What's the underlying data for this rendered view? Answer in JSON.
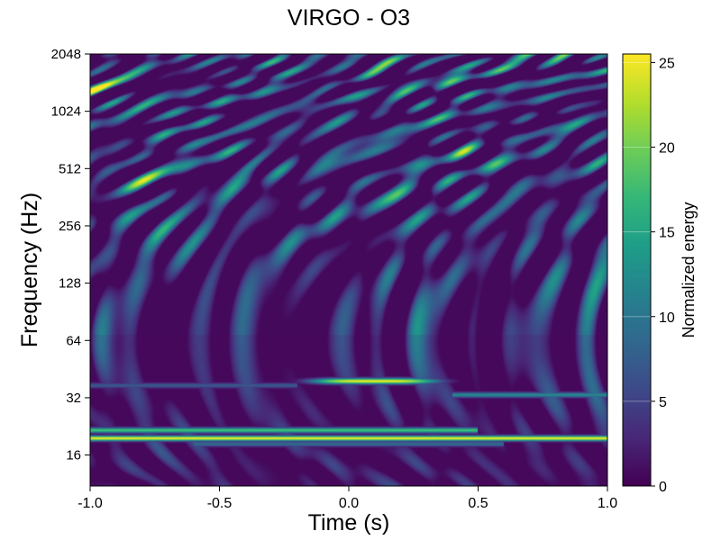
{
  "chart_data": {
    "type": "heatmap",
    "title": "VIRGO - O3",
    "xlabel": "Time (s)",
    "ylabel": "Frequency (Hz)",
    "colorbar_label": "Normalized energy",
    "colormap": "viridis",
    "xlim": [
      -1.0,
      1.0
    ],
    "ylim": [
      11,
      2048
    ],
    "yscale": "log2",
    "clim": [
      0,
      25.5
    ],
    "x_ticks": [
      -1.0,
      -0.5,
      0.0,
      0.5,
      1.0
    ],
    "x_tick_labels": [
      "-1.0",
      "-0.5",
      "0.0",
      "0.5",
      "1.0"
    ],
    "y_ticks": [
      16,
      32,
      64,
      128,
      256,
      512,
      1024,
      2048
    ],
    "y_tick_labels": [
      "16",
      "32",
      "64",
      "128",
      "256",
      "512",
      "1024",
      "2048"
    ],
    "colorbar_ticks": [
      0,
      5,
      10,
      15,
      20,
      25
    ],
    "colorbar_tick_labels": [
      "0",
      "5",
      "10",
      "15",
      "20",
      "25"
    ],
    "features": [
      {
        "kind": "line",
        "desc": "strong narrow-band noise",
        "freq": 19.5,
        "t_start": -1.0,
        "t_end": 1.0,
        "energy": 25
      },
      {
        "kind": "line",
        "desc": "upper companion band",
        "freq": 21.5,
        "t_start": -1.0,
        "t_end": 0.5,
        "energy": 18
      },
      {
        "kind": "line",
        "desc": "lower companion band",
        "freq": 18.2,
        "t_start": -0.6,
        "t_end": 0.6,
        "energy": 9
      },
      {
        "kind": "blob",
        "desc": "transient",
        "freq": 39,
        "t_start": -0.15,
        "t_end": 0.5,
        "t_center": 0.1,
        "energy": 25
      },
      {
        "kind": "line",
        "desc": "faint band",
        "freq": 33,
        "t_start": 0.4,
        "t_end": 1.0,
        "energy": 12
      },
      {
        "kind": "line",
        "desc": "faint band",
        "freq": 37,
        "t_start": -1.0,
        "t_end": -0.2,
        "energy": 7
      }
    ]
  }
}
